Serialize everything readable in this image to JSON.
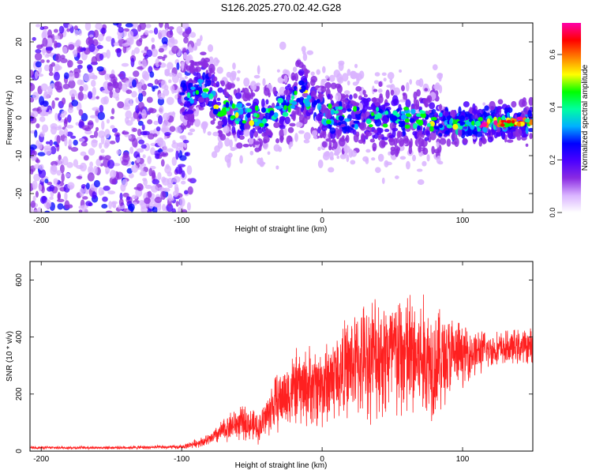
{
  "figure_title": "S126.2025.270.02.42.G28",
  "chart_data": [
    {
      "type": "heatmap",
      "title": "S126.2025.270.02.42.G28",
      "xlabel": "Height of straight line (km)",
      "ylabel": "Frequency (Hz)",
      "xlim": [
        -208,
        150
      ],
      "ylim": [
        -25,
        25
      ],
      "x_ticks": [
        -200,
        -100,
        0,
        100
      ],
      "y_ticks": [
        -20,
        -10,
        0,
        10,
        20
      ],
      "x_tick_labels": [
        "-200",
        "-100",
        "0",
        "100"
      ],
      "y_tick_labels": [
        "-20",
        "-10",
        "0",
        "10",
        "20"
      ],
      "colorbar": {
        "label": "Normalized spectral amplitude",
        "range": [
          0.0,
          0.72
        ],
        "ticks": [
          0.0,
          0.2,
          0.4,
          0.6
        ],
        "tick_labels": [
          "0.0",
          "0.2",
          "0.4",
          "0.6"
        ],
        "colormap": [
          "#ffffff",
          "#d9b3ff",
          "#8a2be2",
          "#4b00ff",
          "#0000ff",
          "#00b0ff",
          "#00ffa0",
          "#00ff00",
          "#ffff00",
          "#ff8000",
          "#ff0000",
          "#ff00aa"
        ]
      },
      "ridge_track": [
        {
          "x": -95,
          "y": 6
        },
        {
          "x": -85,
          "y": 9
        },
        {
          "x": -75,
          "y": 3
        },
        {
          "x": -60,
          "y": 1
        },
        {
          "x": -40,
          "y": 0
        },
        {
          "x": -25,
          "y": 3
        },
        {
          "x": -15,
          "y": 7
        },
        {
          "x": 0,
          "y": 1
        },
        {
          "x": 20,
          "y": 0
        },
        {
          "x": 40,
          "y": 0
        },
        {
          "x": 60,
          "y": 0
        },
        {
          "x": 80,
          "y": -1
        },
        {
          "x": 100,
          "y": -2
        },
        {
          "x": 120,
          "y": -1
        },
        {
          "x": 140,
          "y": -1
        }
      ]
    },
    {
      "type": "line",
      "xlabel": "Height of straight line (km)",
      "ylabel": "SNR (10 * v/v)",
      "xlim": [
        -208,
        150
      ],
      "ylim": [
        0,
        665
      ],
      "x_ticks": [
        -200,
        -100,
        0,
        100
      ],
      "y_ticks": [
        0,
        200,
        400,
        600
      ],
      "x_tick_labels": [
        "-200",
        "-100",
        "0",
        "100"
      ],
      "y_tick_labels": [
        "0",
        "200",
        "400",
        "600"
      ],
      "series": [
        {
          "name": "SNR",
          "color": "#ff2020",
          "envelope": [
            {
              "x": -208,
              "mean": 12,
              "spread": 6
            },
            {
              "x": -150,
              "mean": 12,
              "spread": 6
            },
            {
              "x": -100,
              "mean": 14,
              "spread": 8
            },
            {
              "x": -80,
              "mean": 40,
              "spread": 25
            },
            {
              "x": -65,
              "mean": 90,
              "spread": 60
            },
            {
              "x": -55,
              "mean": 100,
              "spread": 70
            },
            {
              "x": -45,
              "mean": 80,
              "spread": 60
            },
            {
              "x": -35,
              "mean": 160,
              "spread": 110
            },
            {
              "x": -20,
              "mean": 220,
              "spread": 150
            },
            {
              "x": 0,
              "mean": 230,
              "spread": 170
            },
            {
              "x": 20,
              "mean": 300,
              "spread": 200
            },
            {
              "x": 40,
              "mean": 340,
              "spread": 260
            },
            {
              "x": 60,
              "mean": 330,
              "spread": 280
            },
            {
              "x": 80,
              "mean": 320,
              "spread": 240
            },
            {
              "x": 100,
              "mean": 340,
              "spread": 120
            },
            {
              "x": 120,
              "mean": 355,
              "spread": 70
            },
            {
              "x": 150,
              "mean": 370,
              "spread": 70
            }
          ]
        }
      ]
    }
  ]
}
